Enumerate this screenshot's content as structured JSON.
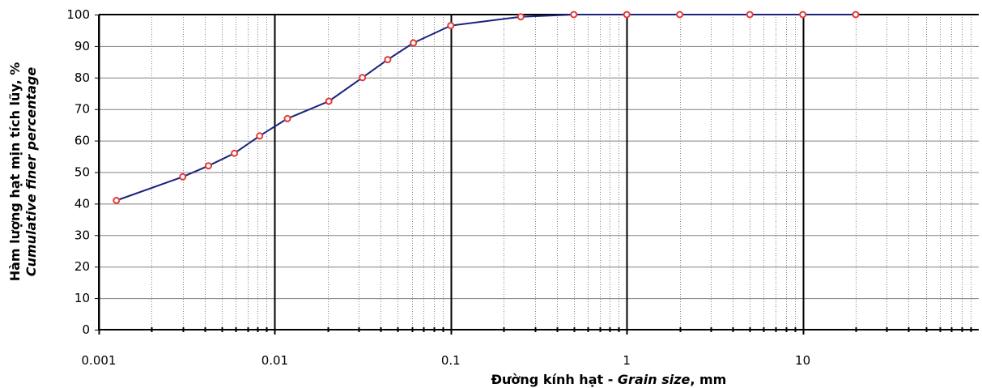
{
  "chart_data": {
    "type": "scatter",
    "x_scale": "log",
    "xlim": [
      0.001,
      100
    ],
    "ylim": [
      0,
      100
    ],
    "grid": true,
    "legend": "none",
    "xlabel_parts": {
      "normal": "Đường kính hạt - ",
      "italic": "Grain size",
      "suffix": ", mm"
    },
    "ylabel_lines": [
      "Hàm lượng hạt mịn tích lũy, %",
      "Cumulative finer percentage"
    ],
    "x_tick_labels": [
      "0.001",
      "0.01",
      "0.1",
      "1",
      "10"
    ],
    "x_tick_values": [
      0.001,
      0.01,
      0.1,
      1,
      10
    ],
    "y_tick_labels": [
      "0",
      "10",
      "20",
      "30",
      "40",
      "50",
      "60",
      "70",
      "80",
      "90",
      "100"
    ],
    "y_tick_values": [
      0,
      10,
      20,
      30,
      40,
      50,
      60,
      70,
      80,
      90,
      100
    ],
    "series": [
      {
        "line_color": "#1a237e",
        "marker_edge_color": "#e53935",
        "marker_fill": "#ffffff",
        "x": [
          0.00126,
          0.003,
          0.0042,
          0.0059,
          0.0082,
          0.0118,
          0.0203,
          0.0315,
          0.0438,
          0.0614,
          0.1,
          0.25,
          0.5,
          1,
          2,
          5,
          10,
          20
        ],
        "y": [
          41,
          48.5,
          52,
          56,
          61.5,
          67,
          72.5,
          80,
          85.7,
          91,
          96.5,
          99.3,
          100,
          100,
          100,
          100,
          100,
          100
        ]
      }
    ],
    "colors": {
      "major_grid": "#000000",
      "minor_grid": "#808080",
      "frame": "#000000"
    }
  }
}
